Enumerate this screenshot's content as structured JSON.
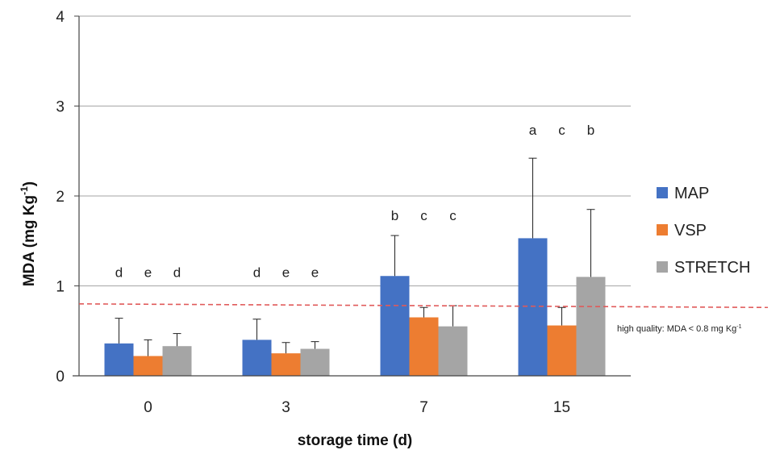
{
  "chart_data": {
    "type": "bar",
    "title": "",
    "xlabel": "storage time (d)",
    "ylabel": "MDA (mg Kg",
    "ylabel_superscript": "-1",
    "ylabel_close": ")",
    "ylim": [
      0,
      4
    ],
    "yticks": [
      "0",
      "1",
      "2",
      "3",
      "4"
    ],
    "categories": [
      "0",
      "3",
      "7",
      "15"
    ],
    "grid": true,
    "legend_position": "right",
    "series": [
      {
        "name": "MAP",
        "color": "#4472c4",
        "values": [
          0.36,
          0.4,
          1.11,
          1.53
        ],
        "errors": [
          0.28,
          0.23,
          0.45,
          0.89
        ],
        "letters": [
          "d",
          "d",
          "b",
          "a"
        ]
      },
      {
        "name": "VSP",
        "color": "#ed7d31",
        "values": [
          0.22,
          0.25,
          0.65,
          0.56
        ],
        "errors": [
          0.18,
          0.12,
          0.11,
          0.2
        ],
        "letters": [
          "e",
          "e",
          "c",
          "c"
        ]
      },
      {
        "name": "STRETCH",
        "color": "#a5a5a5",
        "values": [
          0.33,
          0.3,
          0.55,
          1.1
        ],
        "errors": [
          0.14,
          0.08,
          0.23,
          0.75
        ],
        "letters": [
          "d",
          "e",
          "c",
          "b"
        ]
      }
    ],
    "threshold": {
      "value": 0.8,
      "value_end": 0.76,
      "color": "#e05a5a",
      "label": "high quality: MDA < 0.8 mg Kg",
      "label_superscript": "-1"
    }
  }
}
